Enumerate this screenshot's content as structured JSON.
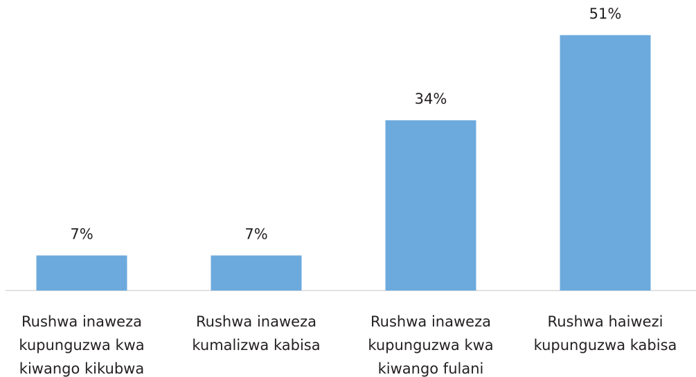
{
  "chart_data": {
    "type": "bar",
    "categories": [
      "Rushwa inaweza kupunguzwa kwa kiwango kikubwa",
      "Rushwa inaweza kumalizwa kabisa",
      "Rushwa inaweza kupunguzwa kwa kiwango fulani",
      "Rushwa haiwezi kupunguzwa kabisa"
    ],
    "values": [
      7,
      7,
      34,
      51
    ],
    "value_labels": [
      "7%",
      "7%",
      "34%",
      "51%"
    ],
    "color": "#6caadd"
  }
}
